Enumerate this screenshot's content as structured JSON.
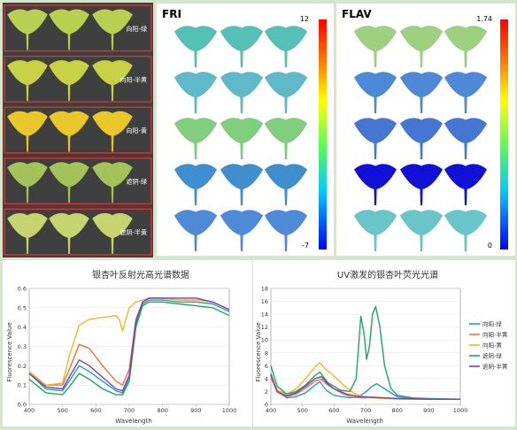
{
  "photo_panel": {
    "row_labels": [
      "向阳-绿",
      "向阳-半黄",
      "向阳-黄",
      "遮阴-绿",
      "遮阴-半黄"
    ],
    "leaf_colors": [
      "#b9cf52",
      "#c9d144",
      "#e9c62a",
      "#a5c25a",
      "#c7d36e"
    ]
  },
  "fri_panel": {
    "title": "FRI",
    "scale_max": "12",
    "scale_min": "-7",
    "leaf_fill": [
      "#54c0b6",
      "#5fb9c8",
      "#7fcf7f",
      "#3f8fd0",
      "#4f8ad7"
    ]
  },
  "flav_panel": {
    "title": "FLAV",
    "scale_max": "1.74",
    "scale_min": "0",
    "leaf_fill": [
      "#9ed17f",
      "#4d89d6",
      "#4577d2",
      "#1010d8",
      "#69c5c9"
    ]
  },
  "chart1": {
    "title": "银杏叶反射光高光谱数据",
    "xlabel": "Wavelength",
    "ylabel": "Fluorescence Value",
    "chart_data": {
      "type": "line",
      "title": "银杏叶反射光高光谱数据",
      "xlabel": "Wavelength",
      "ylabel": "Fluorescence Value",
      "xlim": [
        400,
        1000
      ],
      "ylim": [
        0,
        0.6
      ],
      "xticks": [
        400,
        500,
        600,
        700,
        800,
        900,
        1000
      ],
      "yticks": [
        0,
        0.1,
        0.2,
        0.3,
        0.4,
        0.5,
        0.6
      ],
      "series": [
        {
          "name": "向阳-绿",
          "color": "#1f9fbf",
          "points": [
            [
              400,
              0.16
            ],
            [
              450,
              0.08
            ],
            [
              500,
              0.07
            ],
            [
              520,
              0.12
            ],
            [
              550,
              0.2
            ],
            [
              580,
              0.17
            ],
            [
              620,
              0.12
            ],
            [
              660,
              0.07
            ],
            [
              680,
              0.06
            ],
            [
              700,
              0.14
            ],
            [
              720,
              0.42
            ],
            [
              740,
              0.52
            ],
            [
              760,
              0.54
            ],
            [
              800,
              0.54
            ],
            [
              850,
              0.53
            ],
            [
              900,
              0.53
            ],
            [
              950,
              0.52
            ],
            [
              1000,
              0.48
            ]
          ]
        },
        {
          "name": "向阳-半黄",
          "color": "#e8743b",
          "points": [
            [
              400,
              0.17
            ],
            [
              450,
              0.1
            ],
            [
              500,
              0.1
            ],
            [
              520,
              0.18
            ],
            [
              550,
              0.31
            ],
            [
              580,
              0.29
            ],
            [
              620,
              0.2
            ],
            [
              660,
              0.12
            ],
            [
              680,
              0.1
            ],
            [
              700,
              0.18
            ],
            [
              720,
              0.44
            ],
            [
              740,
              0.53
            ],
            [
              760,
              0.55
            ],
            [
              800,
              0.55
            ],
            [
              850,
              0.54
            ],
            [
              900,
              0.54
            ],
            [
              950,
              0.53
            ],
            [
              1000,
              0.49
            ]
          ]
        },
        {
          "name": "向阳-黄",
          "color": "#f2b824",
          "points": [
            [
              400,
              0.17
            ],
            [
              450,
              0.1
            ],
            [
              500,
              0.11
            ],
            [
              520,
              0.25
            ],
            [
              550,
              0.41
            ],
            [
              580,
              0.44
            ],
            [
              620,
              0.45
            ],
            [
              660,
              0.46
            ],
            [
              670,
              0.44
            ],
            [
              680,
              0.38
            ],
            [
              690,
              0.44
            ],
            [
              700,
              0.5
            ],
            [
              720,
              0.53
            ],
            [
              740,
              0.54
            ],
            [
              760,
              0.55
            ],
            [
              800,
              0.55
            ],
            [
              850,
              0.54
            ],
            [
              900,
              0.54
            ],
            [
              950,
              0.53
            ],
            [
              1000,
              0.49
            ]
          ]
        },
        {
          "name": "遮阴-绿",
          "color": "#1fa65a",
          "points": [
            [
              400,
              0.13
            ],
            [
              450,
              0.06
            ],
            [
              500,
              0.05
            ],
            [
              520,
              0.09
            ],
            [
              550,
              0.16
            ],
            [
              580,
              0.13
            ],
            [
              620,
              0.08
            ],
            [
              660,
              0.05
            ],
            [
              680,
              0.05
            ],
            [
              700,
              0.12
            ],
            [
              720,
              0.4
            ],
            [
              740,
              0.51
            ],
            [
              760,
              0.53
            ],
            [
              800,
              0.53
            ],
            [
              850,
              0.52
            ],
            [
              900,
              0.51
            ],
            [
              950,
              0.5
            ],
            [
              1000,
              0.46
            ]
          ]
        },
        {
          "name": "遮阴-半黄",
          "color": "#7b3fb0",
          "points": [
            [
              400,
              0.16
            ],
            [
              450,
              0.09
            ],
            [
              500,
              0.08
            ],
            [
              520,
              0.14
            ],
            [
              550,
              0.23
            ],
            [
              580,
              0.2
            ],
            [
              620,
              0.14
            ],
            [
              660,
              0.08
            ],
            [
              680,
              0.07
            ],
            [
              700,
              0.15
            ],
            [
              720,
              0.43
            ],
            [
              740,
              0.53
            ],
            [
              760,
              0.55
            ],
            [
              800,
              0.55
            ],
            [
              850,
              0.55
            ],
            [
              900,
              0.55
            ],
            [
              950,
              0.53
            ],
            [
              1000,
              0.49
            ]
          ]
        }
      ]
    }
  },
  "chart2": {
    "title": "UV激发的银杏叶荧光光谱",
    "xlabel": "Wavelength",
    "ylabel": "Fluorescence Value",
    "chart_data": {
      "type": "line",
      "title": "UV激发的银杏叶荧光光谱",
      "xlabel": "Wavelength",
      "ylabel": "Fluorescence Value",
      "xlim": [
        400,
        1000
      ],
      "ylim": [
        0,
        18
      ],
      "xticks": [
        400,
        500,
        600,
        700,
        800,
        900,
        1000
      ],
      "yticks": [
        0,
        2,
        4,
        6,
        8,
        10,
        12,
        14,
        16,
        18
      ],
      "legend_position": "right",
      "series": [
        {
          "name": "向阳-绿",
          "color": "#1f9fbf",
          "points": [
            [
              400,
              4.8
            ],
            [
              420,
              2.0
            ],
            [
              450,
              1.0
            ],
            [
              480,
              1.2
            ],
            [
              510,
              1.8
            ],
            [
              540,
              3.0
            ],
            [
              555,
              3.5
            ],
            [
              575,
              2.2
            ],
            [
              600,
              1.4
            ],
            [
              650,
              1.0
            ],
            [
              680,
              1.3
            ],
            [
              700,
              1.9
            ],
            [
              720,
              2.8
            ],
            [
              735,
              3.2
            ],
            [
              760,
              2.4
            ],
            [
              800,
              1.2
            ],
            [
              850,
              0.9
            ],
            [
              900,
              0.8
            ],
            [
              950,
              0.8
            ],
            [
              1000,
              0.8
            ]
          ]
        },
        {
          "name": "向阳-半黄",
          "color": "#e8743b",
          "points": [
            [
              400,
              4.2
            ],
            [
              420,
              1.9
            ],
            [
              450,
              1.2
            ],
            [
              480,
              1.6
            ],
            [
              510,
              2.5
            ],
            [
              540,
              3.6
            ],
            [
              560,
              3.9
            ],
            [
              580,
              3.0
            ],
            [
              600,
              2.4
            ],
            [
              630,
              1.6
            ],
            [
              660,
              1.1
            ],
            [
              690,
              1.0
            ],
            [
              720,
              1.1
            ],
            [
              760,
              1.0
            ],
            [
              800,
              0.9
            ],
            [
              850,
              0.8
            ],
            [
              900,
              0.8
            ],
            [
              1000,
              0.8
            ]
          ]
        },
        {
          "name": "向阳-黄",
          "color": "#f2b824",
          "points": [
            [
              400,
              4.5
            ],
            [
              420,
              2.2
            ],
            [
              450,
              1.6
            ],
            [
              480,
              2.4
            ],
            [
              510,
              4.0
            ],
            [
              540,
              5.8
            ],
            [
              555,
              6.5
            ],
            [
              570,
              5.6
            ],
            [
              600,
              4.4
            ],
            [
              630,
              3.0
            ],
            [
              660,
              1.8
            ],
            [
              690,
              1.2
            ],
            [
              720,
              1.0
            ],
            [
              760,
              0.9
            ],
            [
              800,
              0.8
            ],
            [
              900,
              0.8
            ],
            [
              1000,
              0.8
            ]
          ]
        },
        {
          "name": "遮阴-绿",
          "color": "#1fa65a",
          "points": [
            [
              400,
              6.0
            ],
            [
              420,
              2.8
            ],
            [
              450,
              1.6
            ],
            [
              480,
              2.0
            ],
            [
              510,
              3.0
            ],
            [
              540,
              4.5
            ],
            [
              555,
              5.0
            ],
            [
              580,
              3.4
            ],
            [
              620,
              2.2
            ],
            [
              650,
              2.0
            ],
            [
              670,
              4.0
            ],
            [
              685,
              13.7
            ],
            [
              695,
              11.0
            ],
            [
              703,
              7.0
            ],
            [
              712,
              9.0
            ],
            [
              722,
              14.0
            ],
            [
              732,
              15.2
            ],
            [
              745,
              12.0
            ],
            [
              760,
              6.0
            ],
            [
              780,
              2.5
            ],
            [
              800,
              1.4
            ],
            [
              850,
              1.0
            ],
            [
              900,
              0.9
            ],
            [
              1000,
              0.8
            ]
          ]
        },
        {
          "name": "遮阴-半黄",
          "color": "#7b3fb0",
          "points": [
            [
              400,
              4.6
            ],
            [
              420,
              2.0
            ],
            [
              450,
              1.3
            ],
            [
              480,
              1.8
            ],
            [
              510,
              2.8
            ],
            [
              540,
              4.0
            ],
            [
              560,
              4.3
            ],
            [
              580,
              3.2
            ],
            [
              600,
              2.4
            ],
            [
              640,
              1.6
            ],
            [
              680,
              1.2
            ],
            [
              720,
              1.1
            ],
            [
              760,
              1.0
            ],
            [
              800,
              0.9
            ],
            [
              900,
              0.8
            ],
            [
              1000,
              0.8
            ]
          ]
        }
      ]
    }
  }
}
